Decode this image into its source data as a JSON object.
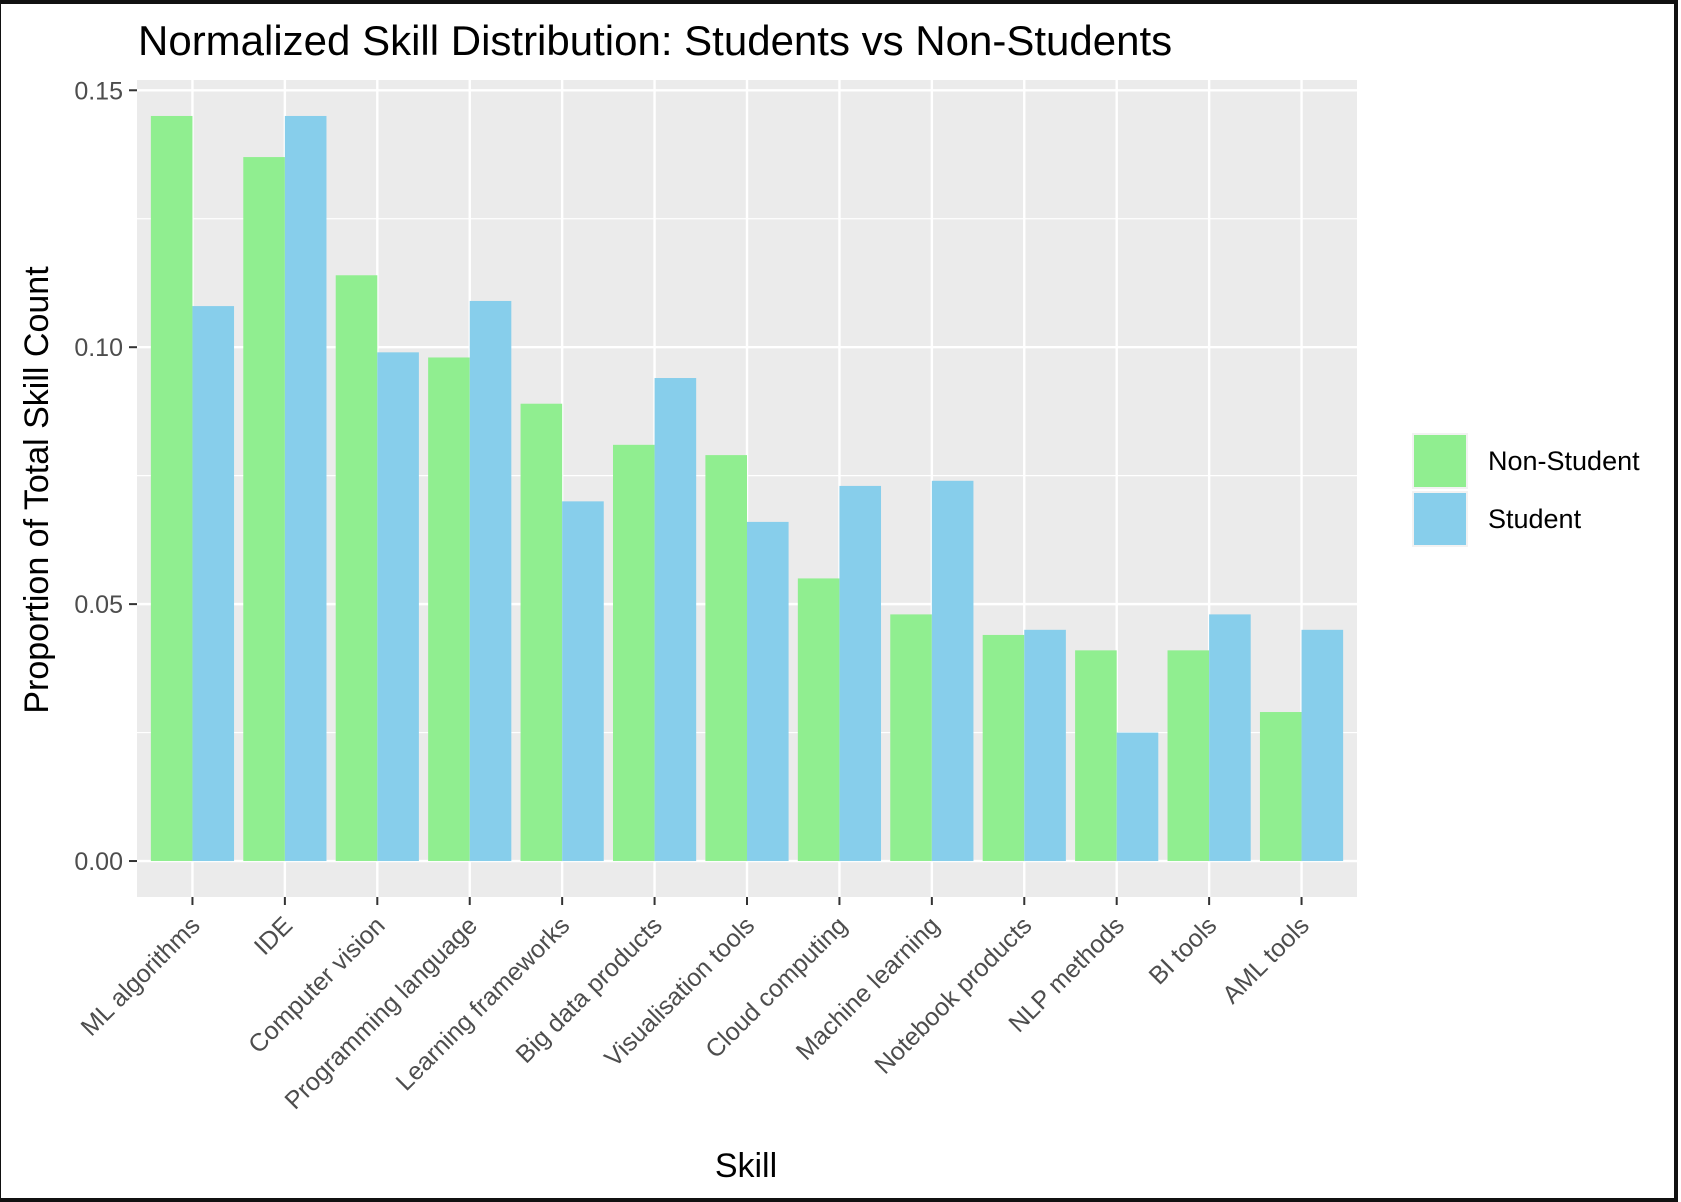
{
  "chart_data": {
    "type": "bar",
    "title": "Normalized Skill Distribution: Students vs Non-Students",
    "xlabel": "Skill",
    "ylabel": "Proportion of Total Skill Count",
    "ylim": [
      -0.007,
      0.152
    ],
    "yticks": [
      "0.00",
      "0.05",
      "0.10",
      "0.15"
    ],
    "ytick_values": [
      0,
      0.05,
      0.1,
      0.15
    ],
    "grid": true,
    "legend_position": "right",
    "categories": [
      "ML algorithms",
      "IDE",
      "Computer vision",
      "Programming language",
      "Learning frameworks",
      "Big data products",
      "Visualisation tools",
      "Cloud computing",
      "Machine learning",
      "Notebook products",
      "NLP methods",
      "BI tools",
      "AML tools"
    ],
    "series": [
      {
        "name": "Non-Student",
        "color": "#90EE90",
        "values": [
          0.145,
          0.137,
          0.114,
          0.098,
          0.089,
          0.081,
          0.079,
          0.055,
          0.048,
          0.044,
          0.041,
          0.041,
          0.029
        ]
      },
      {
        "name": "Student",
        "color": "#87CEEB",
        "values": [
          0.108,
          0.145,
          0.099,
          0.109,
          0.07,
          0.094,
          0.066,
          0.073,
          0.074,
          0.045,
          0.025,
          0.048,
          0.045
        ]
      }
    ],
    "panel_color": "#EBEBEB",
    "grid_color": "#FFFFFF"
  }
}
